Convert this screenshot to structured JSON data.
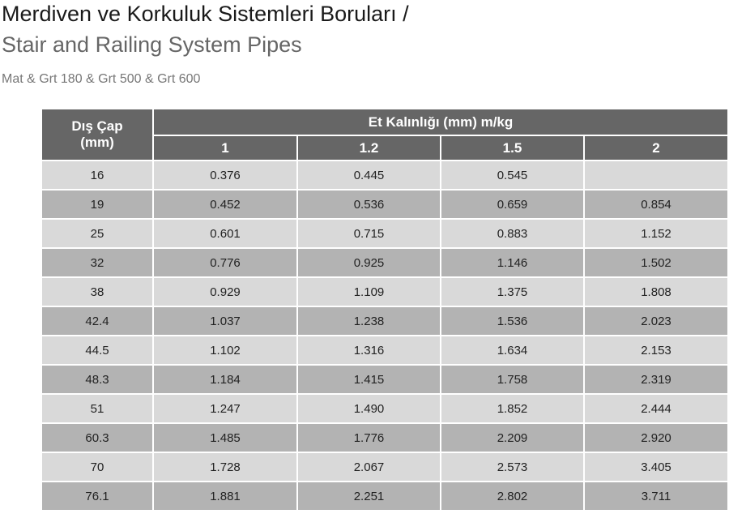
{
  "header": {
    "title": "Merdiven ve Korkuluk Sistemleri Boruları /",
    "subtitle": "Stair and Railing System  Pipes",
    "note": "Mat & Grt 180 & Grt 500 & Grt 600"
  },
  "table": {
    "corner": [
      "Dış Çap",
      "(mm)"
    ],
    "group": "Et Kalınlığı (mm) m/kg",
    "columns": [
      "1",
      "1.2",
      "1.5",
      "2"
    ],
    "rows": [
      [
        "16",
        "0.376",
        "0.445",
        "0.545",
        null
      ],
      [
        "19",
        "0.452",
        "0.536",
        "0.659",
        "0.854"
      ],
      [
        "25",
        "0.601",
        "0.715",
        "0.883",
        "1.152"
      ],
      [
        "32",
        "0.776",
        "0.925",
        "1.146",
        "1.502"
      ],
      [
        "38",
        "0.929",
        "1.109",
        "1.375",
        "1.808"
      ],
      [
        "42.4",
        "1.037",
        "1.238",
        "1.536",
        "2.023"
      ],
      [
        "44.5",
        "1.102",
        "1.316",
        "1.634",
        "2.153"
      ],
      [
        "48.3",
        "1.184",
        "1.415",
        "1.758",
        "2.319"
      ],
      [
        "51",
        "1.247",
        "1.490",
        "1.852",
        "2.444"
      ],
      [
        "60.3",
        "1.485",
        "1.776",
        "2.209",
        "2.920"
      ],
      [
        "70",
        "1.728",
        "2.067",
        "2.573",
        "3.405"
      ],
      [
        "76.1",
        "1.881",
        "2.251",
        "2.802",
        "3.711"
      ]
    ]
  }
}
